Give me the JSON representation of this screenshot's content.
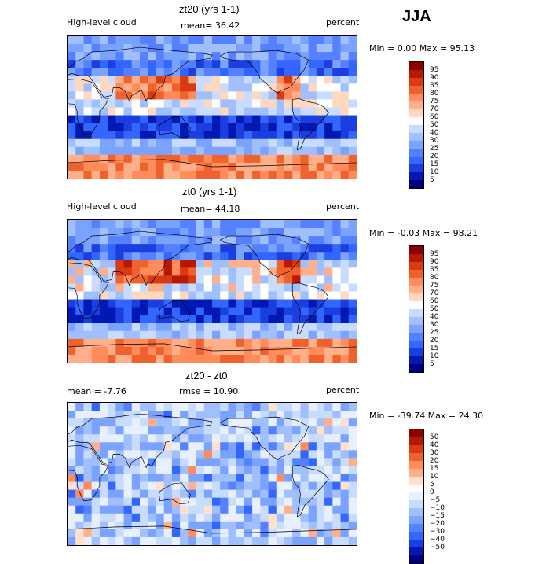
{
  "season": "JJA",
  "colors": {
    "abs_levels": [
      "#00007f",
      "#0019b3",
      "#1a3ee0",
      "#3366ff",
      "#5580ff",
      "#7aa3ff",
      "#a0bfff",
      "#c8dcff",
      "#ffffff",
      "#ffd8c0",
      "#ffb08a",
      "#ff8c5a",
      "#f0622d",
      "#d83a14",
      "#b81800",
      "#8c0000"
    ],
    "diff_levels": [
      "#00007f",
      "#0019b3",
      "#1a3ee0",
      "#3366ff",
      "#5580ff",
      "#7aa3ff",
      "#a0bfff",
      "#c8dcff",
      "#e8f0ff",
      "#ffffff",
      "#ffe0cc",
      "#ffb08a",
      "#ff8c5a",
      "#f0622d",
      "#d83a14",
      "#b81800",
      "#8c0000"
    ]
  },
  "panels": [
    {
      "title": "zt20 (yrs 1-1)",
      "left_label": "High-level cloud",
      "center_label": "mean=  36.42",
      "right_label": "percent",
      "minmax": "Min =    0.00 Max =  95.13",
      "colorbar_labels": [
        "95",
        "90",
        "85",
        "80",
        "75",
        "70",
        "60",
        "50",
        "40",
        "30",
        "25",
        "20",
        "15",
        "10",
        "5"
      ]
    },
    {
      "title": "zt0 (yrs 1-1)",
      "left_label": "High-level cloud",
      "center_label": "mean=  44.18",
      "right_label": "percent",
      "minmax": "Min =  -0.03 Max =  98.21",
      "colorbar_labels": [
        "95",
        "90",
        "85",
        "80",
        "75",
        "70",
        "60",
        "50",
        "40",
        "30",
        "25",
        "20",
        "15",
        "10",
        "5"
      ]
    },
    {
      "title": "zt20 - zt0",
      "left_label": "mean =  -7.76",
      "center_label": "rmse =  10.90",
      "right_label": "percent",
      "minmax": "Min = -39.74 Max =  24.30",
      "colorbar_labels": [
        "50",
        "40",
        "30",
        "20",
        "15",
        "10",
        "5",
        "0",
        "−5",
        "−10",
        "−15",
        "−20",
        "−30",
        "−40",
        "−50"
      ]
    }
  ],
  "chart_data": [
    {
      "type": "heatmap",
      "title": "zt20 (yrs 1-1)",
      "variable": "High-level cloud",
      "units": "percent",
      "mean": 36.42,
      "min": 0.0,
      "max": 95.13,
      "contour_levels": [
        5,
        10,
        15,
        20,
        25,
        30,
        40,
        50,
        60,
        70,
        75,
        80,
        85,
        90,
        95
      ]
    },
    {
      "type": "heatmap",
      "title": "zt0 (yrs 1-1)",
      "variable": "High-level cloud",
      "units": "percent",
      "mean": 44.18,
      "min": -0.03,
      "max": 98.21,
      "contour_levels": [
        5,
        10,
        15,
        20,
        25,
        30,
        40,
        50,
        60,
        70,
        75,
        80,
        85,
        90,
        95
      ]
    },
    {
      "type": "heatmap",
      "title": "zt20 - zt0",
      "units": "percent",
      "mean": -7.76,
      "rmse": 10.9,
      "min": -39.74,
      "max": 24.3,
      "contour_levels": [
        -50,
        -40,
        -30,
        -20,
        -15,
        -10,
        -5,
        0,
        5,
        10,
        15,
        20,
        30,
        40,
        50
      ]
    }
  ]
}
